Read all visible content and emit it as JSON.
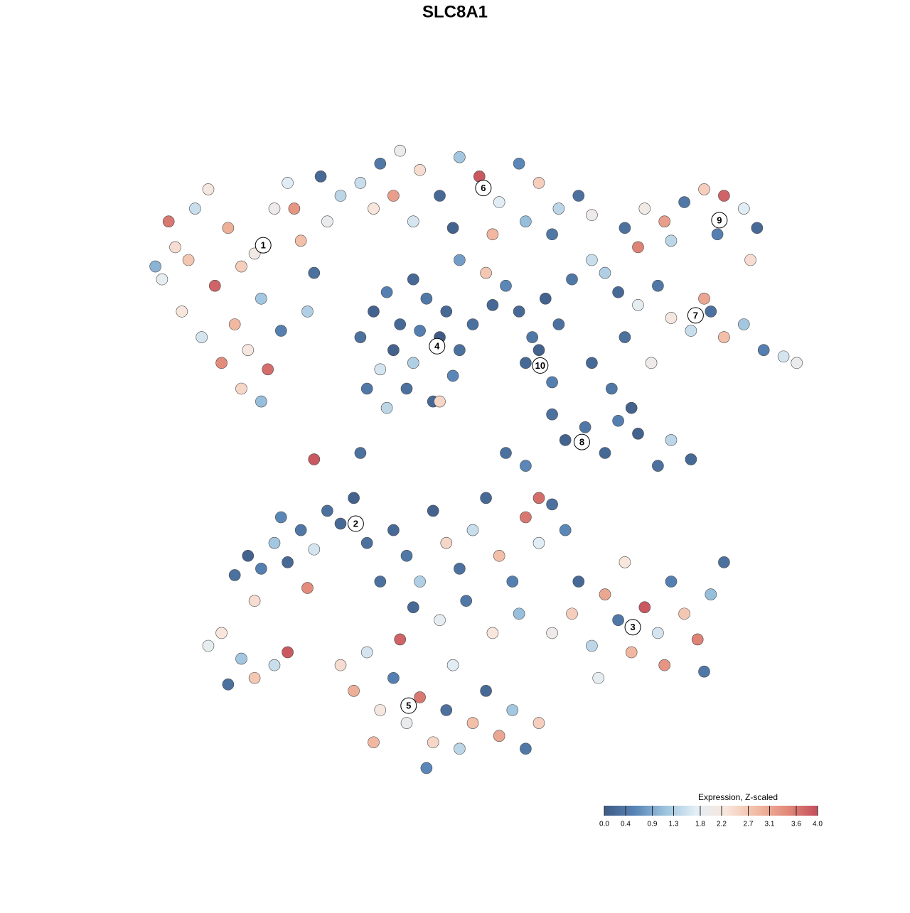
{
  "chart_data": {
    "type": "scatter",
    "title": "SLC8A1",
    "xlim": [
      0,
      100
    ],
    "ylim": [
      0,
      100
    ],
    "x": [
      3,
      5,
      8,
      10,
      13,
      15,
      18,
      20,
      22,
      24,
      26,
      28,
      30,
      6,
      9,
      12,
      15,
      18,
      14,
      11,
      17,
      21,
      25,
      4,
      7,
      16,
      19,
      23,
      27,
      2,
      33,
      36,
      39,
      42,
      45,
      48,
      51,
      54,
      57,
      60,
      63,
      66,
      68,
      35,
      41,
      47,
      53,
      58,
      62,
      38,
      33,
      35,
      37,
      39,
      41,
      43,
      45,
      47,
      44,
      40,
      36,
      38,
      46,
      42,
      34,
      48,
      41,
      37,
      57,
      59,
      61,
      63,
      58,
      62,
      60,
      55,
      50,
      53,
      65,
      68,
      52,
      48,
      73,
      76,
      79,
      82,
      85,
      88,
      91,
      93,
      80,
      87,
      92,
      75,
      70,
      72,
      75,
      78,
      80,
      83,
      86,
      88,
      91,
      94,
      97,
      73,
      77,
      85,
      99,
      62,
      64,
      67,
      70,
      72,
      75,
      78,
      80,
      83,
      71,
      68,
      74,
      55,
      58,
      60,
      26,
      33,
      45,
      14,
      16,
      18,
      20,
      22,
      24,
      26,
      28,
      30,
      32,
      17,
      25,
      21,
      34,
      38,
      40,
      42,
      44,
      46,
      48,
      50,
      52,
      54,
      56,
      58,
      60,
      62,
      64,
      41,
      45,
      49,
      53,
      57,
      36,
      62,
      65,
      68,
      70,
      72,
      74,
      76,
      78,
      80,
      82,
      84,
      86,
      88,
      66,
      73,
      79,
      69,
      85,
      30,
      32,
      34,
      36,
      38,
      40,
      42,
      44,
      46,
      48,
      50,
      52,
      54,
      56,
      58,
      60,
      47,
      35,
      43,
      39,
      10,
      12,
      15,
      17,
      20,
      22,
      13
    ],
    "y": [
      77,
      82,
      88,
      91,
      85,
      79,
      74,
      88,
      92,
      83,
      78,
      86,
      90,
      72,
      68,
      64,
      60,
      58,
      70,
      76,
      81,
      69,
      72,
      86,
      80,
      66,
      63,
      88,
      93,
      79,
      92,
      95,
      97,
      94,
      90,
      96,
      93,
      89,
      95,
      92,
      88,
      90,
      87,
      88,
      86,
      85,
      84,
      86,
      84,
      90,
      68,
      72,
      75,
      70,
      64,
      74,
      68,
      62,
      58,
      60,
      63,
      66,
      72,
      69,
      60,
      66,
      77,
      57,
      72,
      68,
      74,
      70,
      64,
      61,
      66,
      76,
      70,
      73,
      77,
      80,
      78,
      80,
      85,
      88,
      86,
      89,
      91,
      90,
      88,
      85,
      83,
      84,
      80,
      82,
      78,
      75,
      73,
      76,
      71,
      69,
      72,
      68,
      70,
      66,
      65,
      68,
      64,
      74,
      64,
      56,
      52,
      54,
      50,
      55,
      53,
      48,
      52,
      49,
      60,
      64,
      57,
      50,
      48,
      43,
      49,
      50,
      58,
      31,
      34,
      32,
      36,
      33,
      38,
      35,
      41,
      39,
      43,
      27,
      29,
      40,
      36,
      38,
      34,
      30,
      41,
      36,
      32,
      38,
      43,
      34,
      30,
      40,
      36,
      42,
      38,
      26,
      24,
      27,
      22,
      25,
      30,
      22,
      25,
      20,
      28,
      24,
      19,
      26,
      22,
      30,
      25,
      21,
      28,
      33,
      30,
      33,
      17,
      15,
      16,
      17,
      13,
      19,
      10,
      15,
      8,
      12,
      5,
      10,
      4,
      8,
      13,
      6,
      10,
      4,
      8,
      17,
      5,
      1,
      21,
      20,
      22,
      18,
      15,
      17,
      19,
      14
    ],
    "values": [
      1.8,
      2.4,
      1.5,
      2.2,
      3.0,
      2.6,
      1.2,
      2.0,
      1.7,
      2.8,
      0.3,
      1.9,
      1.4,
      2.3,
      1.6,
      3.4,
      2.5,
      1.1,
      2.9,
      3.8,
      2.1,
      0.5,
      1.3,
      3.6,
      2.7,
      2.2,
      3.7,
      3.3,
      0.2,
      1.0,
      1.5,
      0.4,
      1.9,
      2.4,
      0.2,
      1.2,
      3.9,
      1.7,
      0.6,
      2.6,
      1.4,
      0.3,
      2.0,
      2.3,
      1.6,
      0.1,
      2.9,
      1.1,
      0.4,
      3.2,
      0.3,
      0.1,
      0.5,
      0.2,
      1.3,
      0.4,
      0.0,
      0.6,
      0.2,
      0.3,
      1.6,
      0.1,
      0.2,
      0.5,
      0.4,
      0.3,
      0.2,
      1.4,
      0.2,
      0.4,
      0.1,
      0.3,
      0.2,
      0.5,
      0.1,
      0.6,
      0.3,
      0.2,
      0.4,
      1.5,
      2.7,
      0.8,
      0.3,
      2.1,
      3.2,
      0.4,
      2.6,
      3.8,
      1.7,
      0.2,
      1.4,
      0.5,
      2.4,
      3.5,
      1.3,
      0.2,
      1.8,
      0.4,
      2.2,
      1.5,
      0.3,
      2.8,
      1.2,
      0.5,
      1.6,
      0.3,
      2.0,
      3.1,
      1.9,
      0.3,
      0.1,
      0.4,
      0.2,
      0.5,
      0.1,
      0.3,
      1.4,
      0.2,
      0.4,
      0.2,
      0.1,
      0.3,
      0.6,
      3.7,
      3.9,
      0.3,
      2.5,
      0.3,
      0.1,
      0.5,
      1.2,
      0.2,
      0.4,
      1.6,
      0.3,
      0.2,
      0.1,
      2.4,
      3.4,
      0.6,
      0.3,
      0.2,
      0.4,
      1.3,
      0.1,
      2.5,
      0.3,
      1.5,
      0.2,
      2.8,
      0.5,
      3.6,
      1.7,
      0.3,
      0.6,
      0.2,
      1.8,
      0.4,
      2.3,
      1.1,
      0.3,
      2.0,
      2.6,
      1.4,
      3.1,
      0.4,
      2.9,
      3.9,
      1.6,
      0.5,
      2.7,
      3.5,
      1.1,
      0.3,
      0.2,
      2.3,
      3.3,
      1.8,
      0.4,
      2.4,
      3.0,
      1.6,
      2.2,
      0.5,
      1.9,
      3.6,
      2.5,
      0.3,
      1.4,
      2.8,
      0.2,
      3.1,
      1.2,
      0.4,
      2.6,
      1.7,
      2.9,
      0.6,
      3.8,
      1.8,
      2.3,
      1.2,
      2.7,
      1.5,
      3.9,
      0.3
    ],
    "cluster_labels": {
      "text": [
        "1",
        "2",
        "3",
        "4",
        "5",
        "6",
        "7",
        "8",
        "9",
        "10"
      ],
      "x": [
        18.3,
        32.3,
        74.2,
        44.6,
        40.3,
        51.6,
        83.7,
        66.5,
        87.3,
        60.2
      ],
      "y": [
        82.3,
        39.0,
        22.9,
        66.6,
        10.7,
        91.2,
        71.4,
        51.7,
        86.2,
        63.6
      ]
    },
    "colorbar": {
      "title": "Expression, Z-scaled",
      "lim": [
        0,
        4
      ],
      "colors": [
        "#3f5b85",
        "#5784b6",
        "#9cc3de",
        "#e3eef5",
        "#f8e6dc",
        "#f2bba3",
        "#e28a7a",
        "#c44e5c"
      ],
      "ticks": [
        {
          "value": 0,
          "label": "0.0"
        },
        0.4,
        0.9,
        1.3,
        1.8,
        2.2,
        2.7,
        3.1,
        3.6,
        {
          "value": 4,
          "label": "4.0"
        }
      ]
    }
  }
}
